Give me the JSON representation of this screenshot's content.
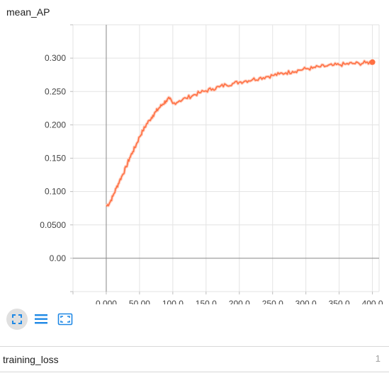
{
  "card": {
    "title": "mean_AP"
  },
  "toolbar": {
    "buttons": [
      {
        "icon": "fullscreen-icon"
      },
      {
        "icon": "data-list-icon"
      },
      {
        "icon": "fit-domain-icon"
      }
    ]
  },
  "section": {
    "title": "training_loss",
    "count": "1"
  },
  "chart_data": {
    "type": "line",
    "title": "mean_AP",
    "xlabel": "",
    "ylabel": "",
    "xlim": [
      -50,
      410
    ],
    "ylim": [
      -0.05,
      0.35
    ],
    "x_ticks": [
      0,
      50,
      100,
      150,
      200,
      250,
      300,
      350,
      400
    ],
    "x_tick_labels": [
      "0.000",
      "50.00",
      "100.0",
      "150.0",
      "200.0",
      "250.0",
      "300.0",
      "350.0",
      "400.0"
    ],
    "y_ticks": [
      0,
      0.05,
      0.1,
      0.15,
      0.2,
      0.25,
      0.3
    ],
    "y_tick_labels": [
      "0.00",
      "0.0500",
      "0.100",
      "0.150",
      "0.200",
      "0.250",
      "0.300"
    ],
    "grid": true,
    "color": "#ff7043",
    "series": [
      {
        "x": [
          0,
          5,
          10,
          15,
          20,
          25,
          30,
          35,
          40,
          45,
          50,
          55,
          60,
          65,
          70,
          75,
          80,
          85,
          90,
          95,
          100,
          110,
          120,
          130,
          140,
          150,
          160,
          170,
          180,
          190,
          200,
          210,
          220,
          230,
          240,
          250,
          260,
          270,
          280,
          290,
          300,
          310,
          320,
          330,
          340,
          350,
          360,
          370,
          380,
          390,
          400
        ],
        "y": [
          0.078,
          0.083,
          0.093,
          0.105,
          0.116,
          0.126,
          0.137,
          0.15,
          0.16,
          0.17,
          0.182,
          0.191,
          0.2,
          0.207,
          0.214,
          0.22,
          0.226,
          0.231,
          0.236,
          0.239,
          0.232,
          0.236,
          0.24,
          0.244,
          0.248,
          0.251,
          0.254,
          0.257,
          0.26,
          0.262,
          0.264,
          0.266,
          0.268,
          0.27,
          0.272,
          0.274,
          0.276,
          0.278,
          0.28,
          0.282,
          0.284,
          0.285,
          0.287,
          0.288,
          0.289,
          0.29,
          0.291,
          0.292,
          0.292,
          0.293,
          0.294
        ]
      }
    ]
  }
}
